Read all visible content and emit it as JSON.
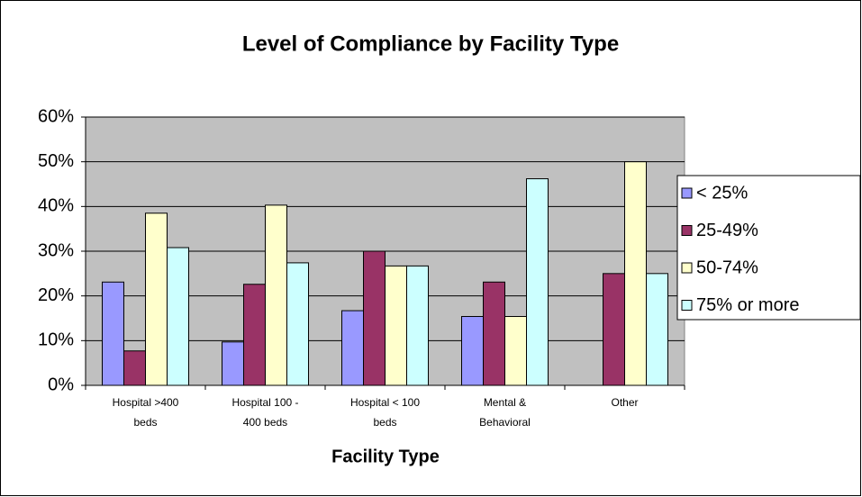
{
  "chart_data": {
    "type": "bar",
    "title": "Level of Compliance by Facility Type",
    "x_label": "Facility Type",
    "categories": [
      [
        "Hospital >400",
        "beds"
      ],
      [
        "Hospital 100 -",
        "400 beds"
      ],
      [
        "Hospital < 100",
        "beds"
      ],
      [
        "Mental &",
        "Behavioral"
      ],
      [
        "Other"
      ]
    ],
    "series": [
      {
        "name": "< 25%",
        "color": "#9999ff",
        "values": [
          23.1,
          9.7,
          16.7,
          15.4,
          0
        ]
      },
      {
        "name": "25-49%",
        "color": "#993366",
        "values": [
          7.7,
          22.6,
          30,
          23.1,
          25
        ]
      },
      {
        "name": "50-74%",
        "color": "#ffffcc",
        "values": [
          38.5,
          40.3,
          26.7,
          15.4,
          50
        ]
      },
      {
        "name": "75% or more",
        "color": "#ccffff",
        "values": [
          30.8,
          27.4,
          26.7,
          46.2,
          25
        ]
      }
    ],
    "ylim": [
      0,
      60
    ],
    "yticks": [
      {
        "value": 0,
        "label": "0%"
      },
      {
        "value": 10,
        "label": "10%"
      },
      {
        "value": 20,
        "label": "20%"
      },
      {
        "value": 30,
        "label": "30%"
      },
      {
        "value": 40,
        "label": "40%"
      },
      {
        "value": 50,
        "label": "50%"
      },
      {
        "value": 60,
        "label": "60%"
      }
    ],
    "grid": true,
    "legend": "right",
    "plot_background": "#c0c0c0"
  }
}
